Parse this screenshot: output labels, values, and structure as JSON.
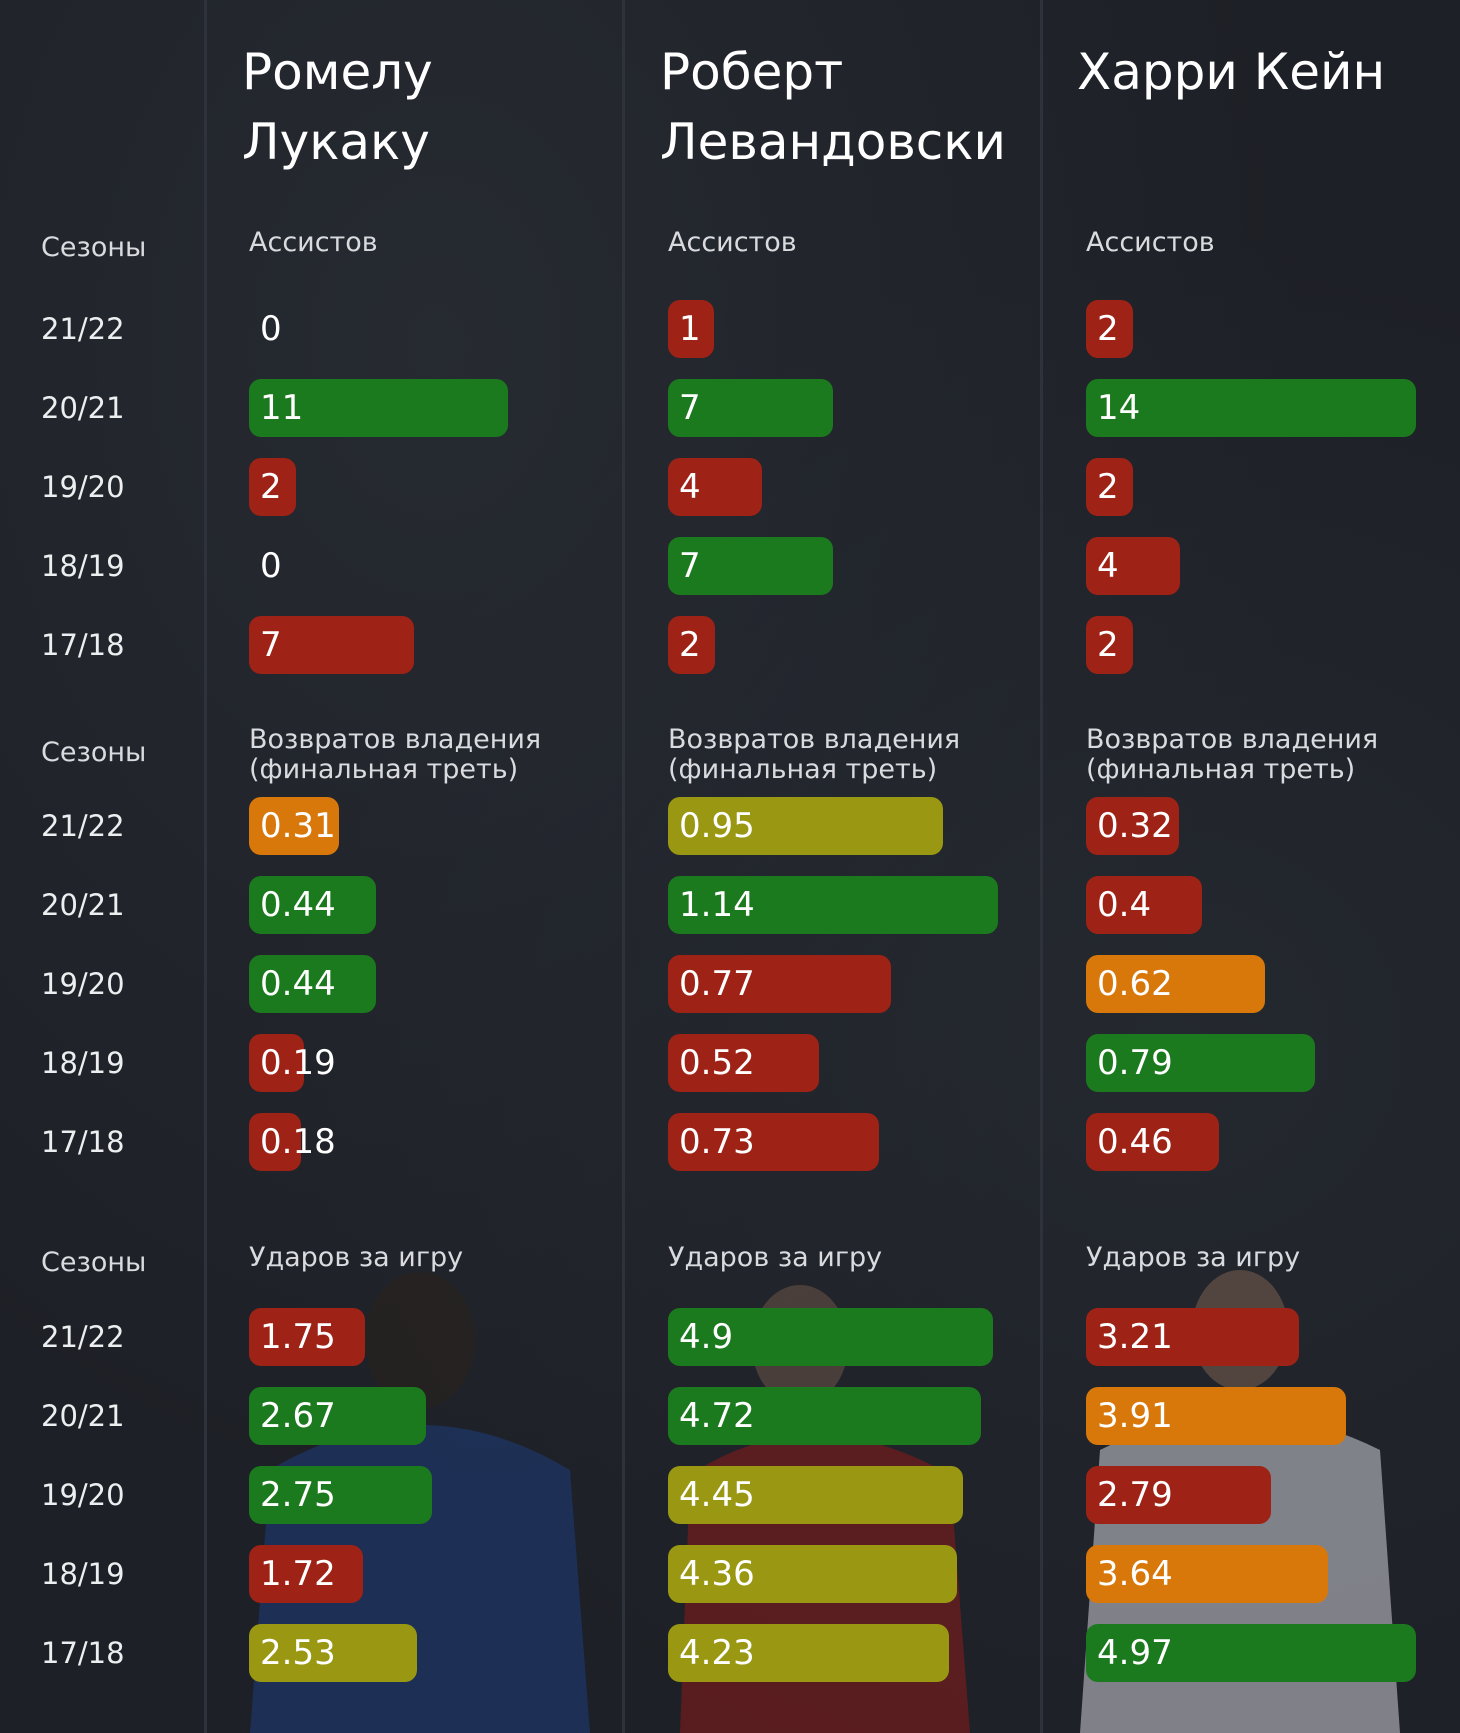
{
  "colors": {
    "green": "#1c7a1e",
    "red": "#9f2216",
    "orange": "#d8780b",
    "olive": "#9a9812",
    "background": "#1d2026"
  },
  "chart_data": {
    "type": "bar",
    "players": [
      "Ромелу Лукаку",
      "Роберт Левандовски",
      "Харри Кейн"
    ],
    "season_header": "Сезоны",
    "seasons": [
      "21/22",
      "20/21",
      "19/20",
      "18/19",
      "17/18"
    ],
    "metrics": [
      {
        "label": "Ассистов",
        "max": 14,
        "values": [
          [
            0,
            11,
            2,
            0,
            7
          ],
          [
            1,
            7,
            4,
            7,
            2
          ],
          [
            2,
            14,
            2,
            4,
            2
          ]
        ],
        "display": [
          [
            "0",
            "11",
            "2",
            "0",
            "7"
          ],
          [
            "1",
            "7",
            "4",
            "7",
            "2"
          ],
          [
            "2",
            "14",
            "2",
            "4",
            "2"
          ]
        ],
        "colors": [
          [
            "none",
            "green",
            "red",
            "none",
            "red"
          ],
          [
            "red",
            "green",
            "red",
            "green",
            "red"
          ],
          [
            "red",
            "green",
            "red",
            "red",
            "red"
          ]
        ]
      },
      {
        "label": "Возвратов владения (финальная треть)",
        "values": [
          [
            0.31,
            0.44,
            0.44,
            0.19,
            0.18
          ],
          [
            0.95,
            1.14,
            0.77,
            0.52,
            0.73
          ],
          [
            0.32,
            0.4,
            0.62,
            0.79,
            0.46
          ]
        ],
        "display": [
          [
            "0.31",
            "0.44",
            "0.44",
            "0.19",
            "0.18"
          ],
          [
            "0.95",
            "1.14",
            "0.77",
            "0.52",
            "0.73"
          ],
          [
            "0.32",
            "0.4",
            "0.62",
            "0.79",
            "0.46"
          ]
        ],
        "colors": [
          [
            "orange",
            "green",
            "green",
            "red",
            "red"
          ],
          [
            "olive",
            "green",
            "red",
            "red",
            "red"
          ],
          [
            "red",
            "red",
            "orange",
            "green",
            "red"
          ]
        ]
      },
      {
        "label": "Ударов за игру",
        "values": [
          [
            1.75,
            2.67,
            2.75,
            1.72,
            2.53
          ],
          [
            4.9,
            4.72,
            4.45,
            4.36,
            4.23
          ],
          [
            3.21,
            3.91,
            2.79,
            3.64,
            4.97
          ]
        ],
        "display": [
          [
            "1.75",
            "2.67",
            "2.75",
            "1.72",
            "2.53"
          ],
          [
            "4.9",
            "4.72",
            "4.45",
            "4.36",
            "4.23"
          ],
          [
            "3.21",
            "3.91",
            "2.79",
            "3.64",
            "4.97"
          ]
        ],
        "colors": [
          [
            "red",
            "green",
            "green",
            "red",
            "olive"
          ],
          [
            "green",
            "green",
            "olive",
            "olive",
            "olive"
          ],
          [
            "red",
            "orange",
            "red",
            "orange",
            "green"
          ]
        ]
      }
    ]
  }
}
